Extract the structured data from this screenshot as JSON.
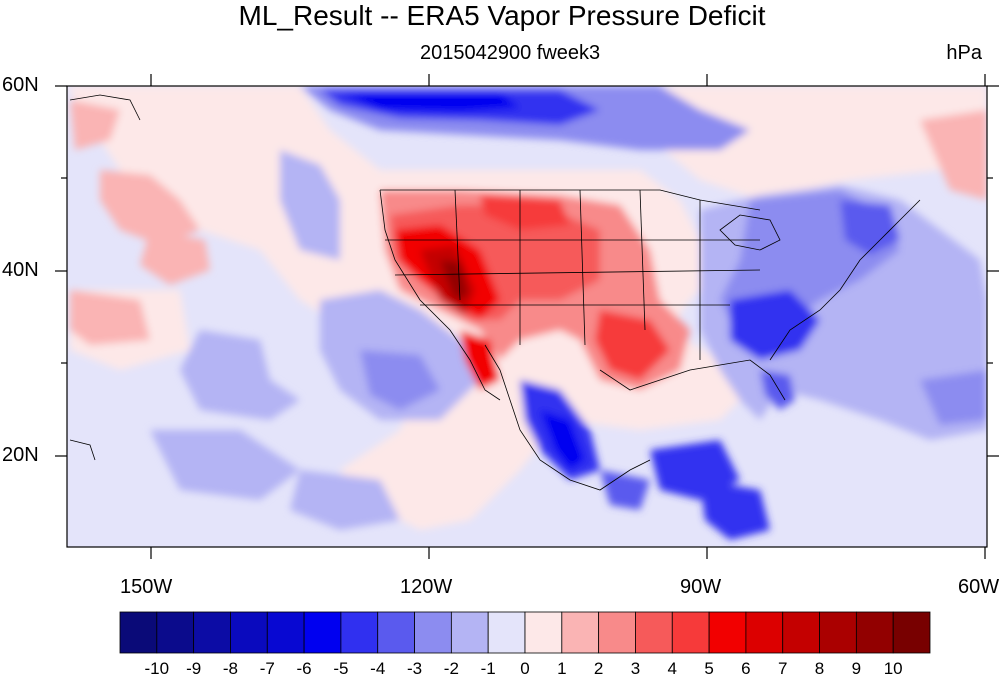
{
  "title": "ML_Result -- ERA5 Vapor Pressure Deficit",
  "subtitle": "2015042900 fweek3",
  "units": "hPa",
  "axes": {
    "lat_labels": [
      "60N",
      "40N",
      "20N"
    ],
    "lon_labels": [
      "150W",
      "120W",
      "90W",
      "60W"
    ]
  },
  "colorbar": {
    "labels": [
      "-10",
      "-9",
      "-8",
      "-7",
      "-6",
      "-5",
      "-4",
      "-3",
      "-2",
      "-1",
      "0",
      "1",
      "2",
      "3",
      "4",
      "5",
      "6",
      "7",
      "8",
      "9",
      "10"
    ],
    "colors": [
      "#0a0a78",
      "#0b0b8c",
      "#0c0ca5",
      "#0a0abe",
      "#0808d2",
      "#0000f0",
      "#3030f0",
      "#5a5aee",
      "#8c8cf0",
      "#b4b4f4",
      "#e4e4fa",
      "#fde8e8",
      "#fab4b4",
      "#f88a8a",
      "#f65a5a",
      "#f63a3a",
      "#f20000",
      "#dc0000",
      "#c40000",
      "#aa0000",
      "#920000",
      "#780000"
    ]
  },
  "map_extent": {
    "lon_min": -160,
    "lon_max": -60,
    "lat_min": 10,
    "lat_max": 60
  }
}
